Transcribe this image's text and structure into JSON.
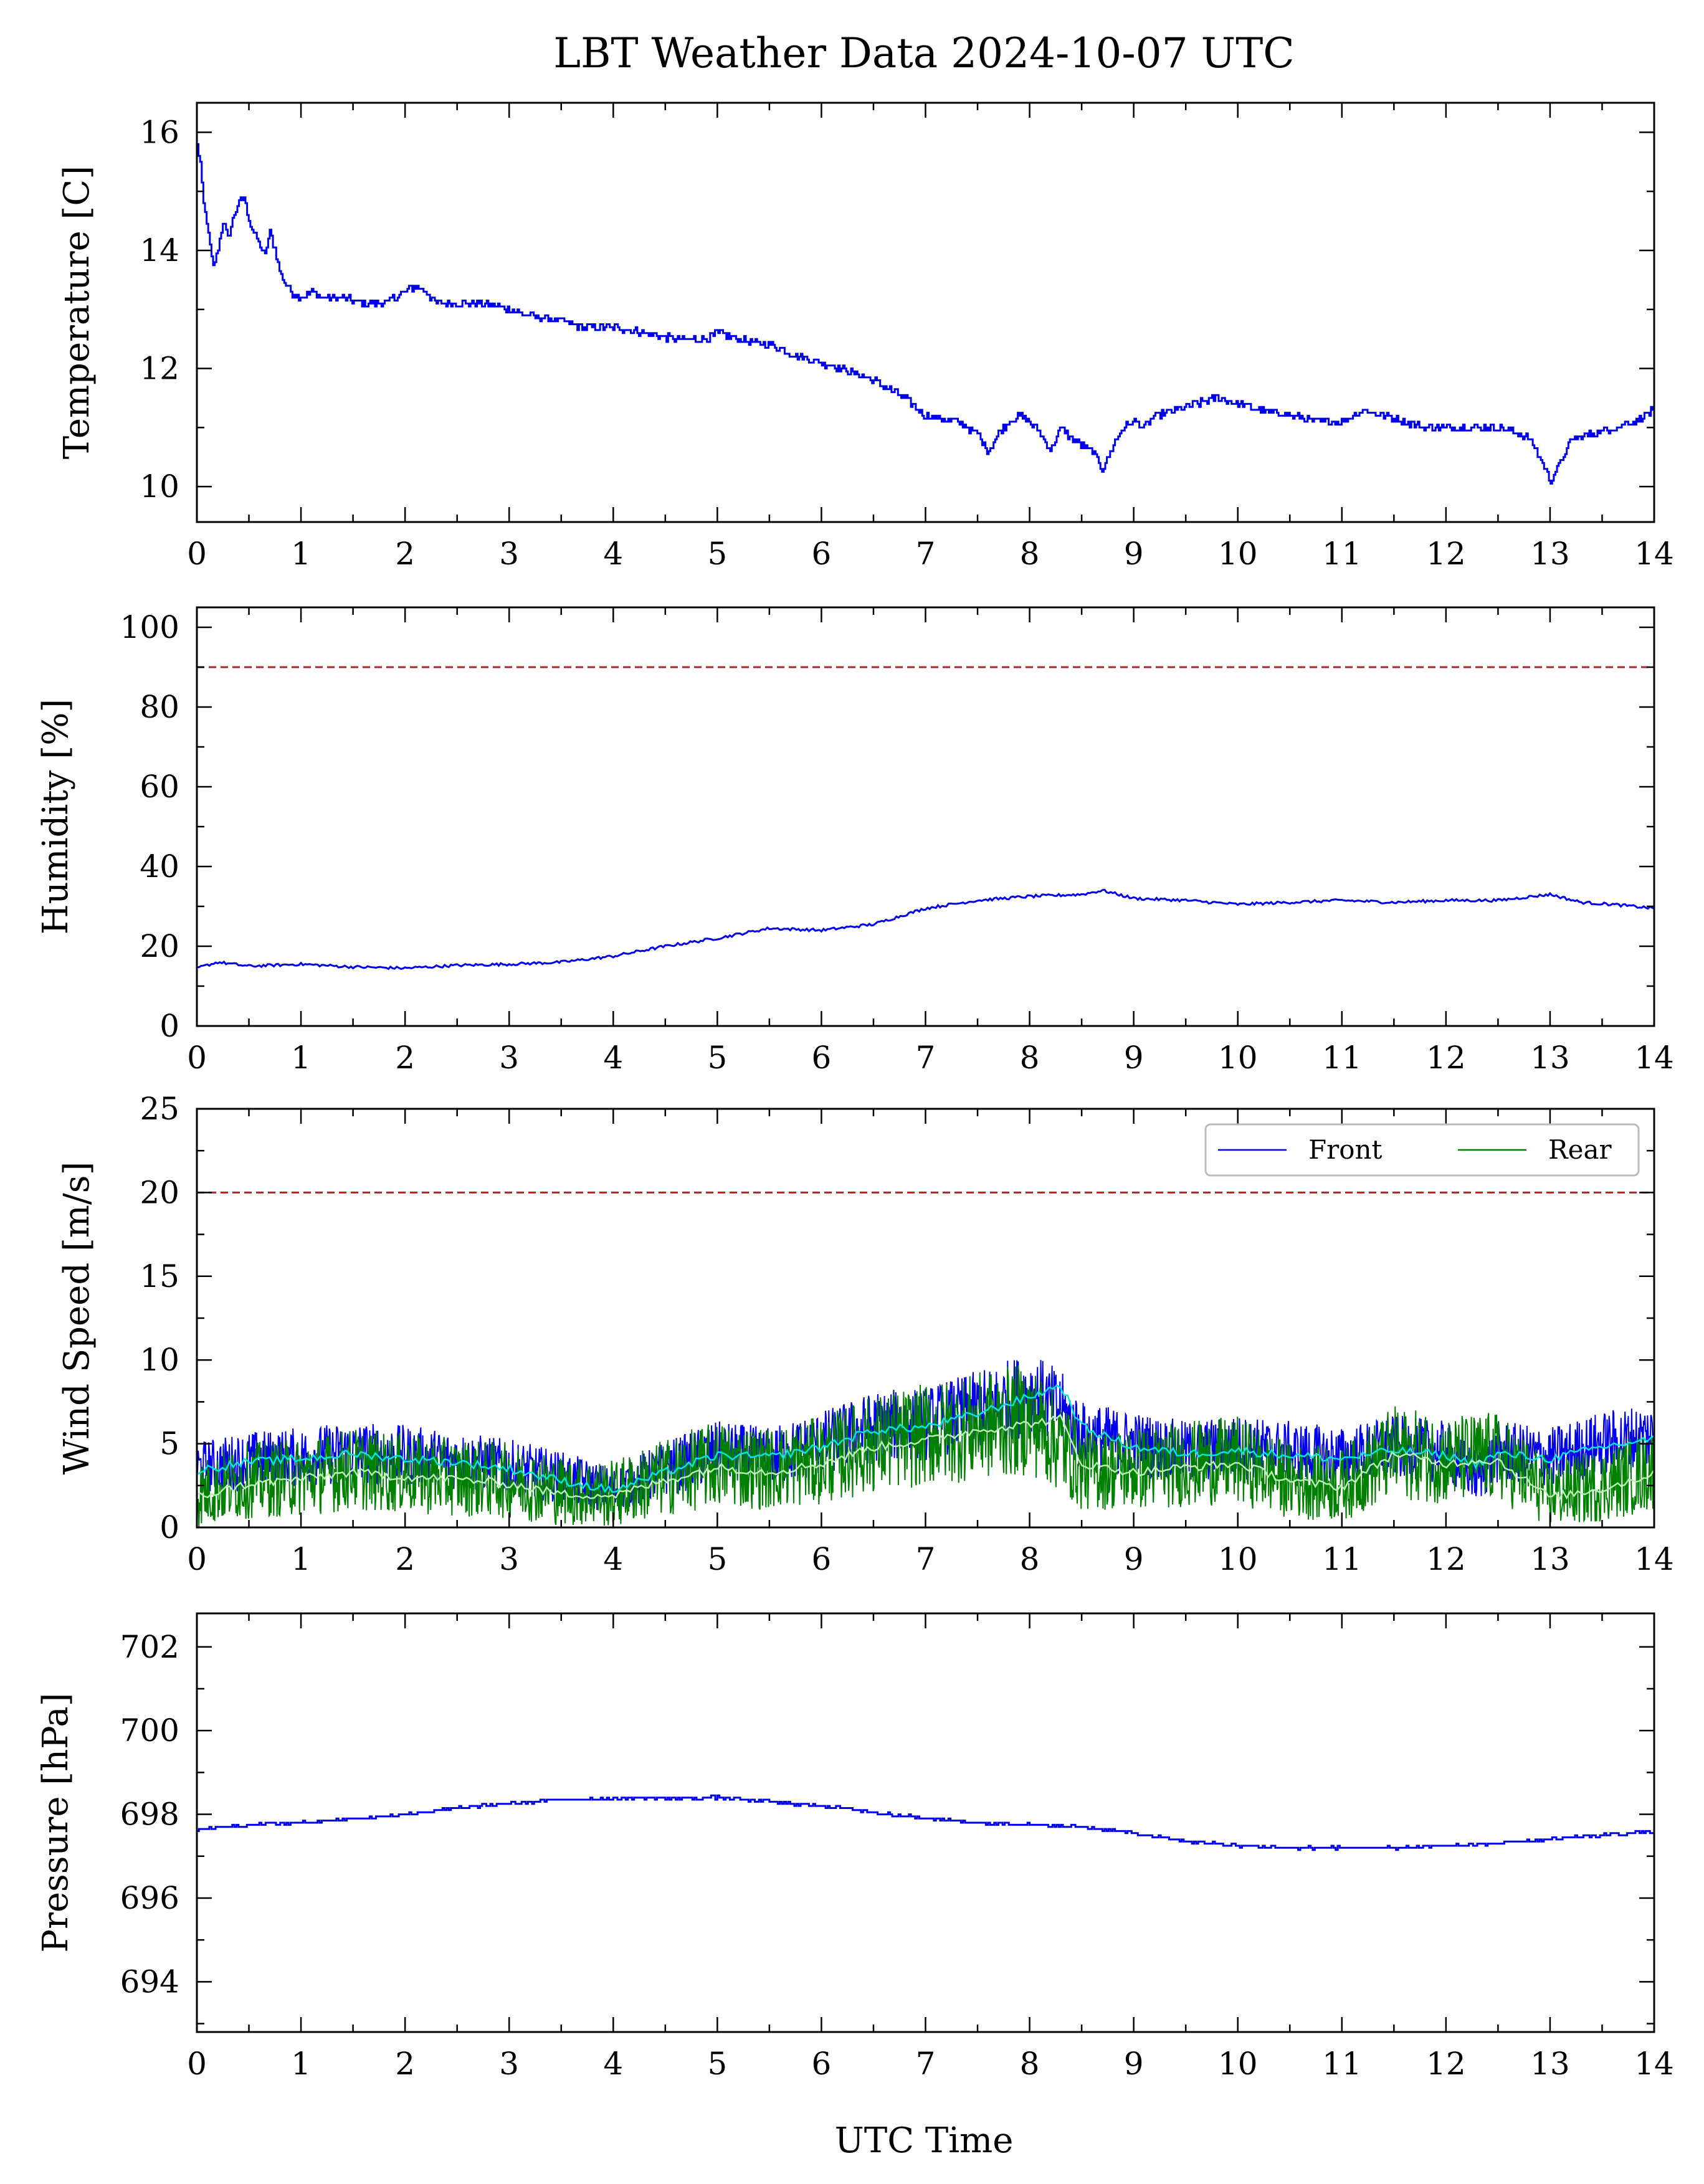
{
  "title": "LBT Weather Data 2024-10-07 UTC",
  "xlabel": "UTC Time",
  "chart_data": [
    {
      "type": "line",
      "ylabel": "Temperature [C]",
      "xlim": [
        0,
        14
      ],
      "ylim": [
        9.4,
        16.5
      ],
      "xticks": [
        "0",
        "1",
        "2",
        "3",
        "4",
        "5",
        "6",
        "7",
        "8",
        "9",
        "10",
        "11",
        "12",
        "13",
        "14"
      ],
      "yticks": [
        "10",
        "12",
        "14",
        "16"
      ],
      "ytick_values": [
        10,
        12,
        14,
        16
      ],
      "colors": {
        "series": "#0000ee"
      },
      "series": [
        {
          "x": [
            0,
            0.03,
            0.06,
            0.1,
            0.15,
            0.2,
            0.25,
            0.3,
            0.35,
            0.4,
            0.45,
            0.5,
            0.55,
            0.6,
            0.65,
            0.7,
            0.75,
            0.8,
            0.9,
            1.0,
            1.1,
            1.2,
            1.4,
            1.6,
            1.8,
            2.0,
            2.1,
            2.2,
            2.3,
            2.5,
            2.8,
            3.0,
            3.2,
            3.5,
            3.7,
            4.0,
            4.3,
            4.6,
            4.9,
            5.0,
            5.2,
            5.5,
            5.8,
            6.0,
            6.2,
            6.5,
            6.8,
            7.0,
            7.3,
            7.5,
            7.6,
            7.7,
            7.8,
            7.9,
            8.0,
            8.1,
            8.2,
            8.3,
            8.4,
            8.5,
            8.6,
            8.7,
            8.8,
            8.9,
            9.0,
            9.1,
            9.2,
            9.4,
            9.6,
            9.8,
            10.0,
            10.2,
            10.5,
            10.8,
            11.0,
            11.1,
            11.2,
            11.4,
            11.6,
            11.8,
            12.0,
            12.2,
            12.5,
            12.7,
            12.8,
            12.9,
            13.0,
            13.1,
            13.2,
            13.4,
            13.6,
            13.8,
            14.0
          ],
          "y": [
            15.8,
            15.5,
            14.8,
            14.4,
            13.7,
            14.0,
            14.5,
            14.2,
            14.6,
            14.8,
            14.9,
            14.5,
            14.3,
            14.1,
            13.9,
            14.3,
            14.0,
            13.6,
            13.3,
            13.2,
            13.3,
            13.2,
            13.2,
            13.1,
            13.1,
            13.3,
            13.4,
            13.3,
            13.1,
            13.1,
            13.1,
            13.0,
            12.9,
            12.8,
            12.7,
            12.7,
            12.6,
            12.5,
            12.5,
            12.6,
            12.5,
            12.4,
            12.2,
            12.1,
            12.0,
            11.8,
            11.5,
            11.2,
            11.1,
            10.9,
            10.6,
            10.9,
            11.1,
            11.2,
            11.1,
            10.9,
            10.6,
            11.0,
            10.8,
            10.7,
            10.6,
            10.3,
            10.7,
            11.0,
            11.1,
            11.0,
            11.2,
            11.3,
            11.4,
            11.5,
            11.4,
            11.3,
            11.2,
            11.1,
            11.1,
            11.2,
            11.3,
            11.2,
            11.1,
            11.0,
            11.0,
            11.0,
            11.0,
            10.9,
            10.8,
            10.5,
            10.1,
            10.4,
            10.8,
            10.9,
            11.0,
            11.1,
            11.3
          ]
        }
      ]
    },
    {
      "type": "line",
      "ylabel": "Humidity [%]",
      "xlim": [
        0,
        14
      ],
      "ylim": [
        0,
        105
      ],
      "xticks": [
        "0",
        "1",
        "2",
        "3",
        "4",
        "5",
        "6",
        "7",
        "8",
        "9",
        "10",
        "11",
        "12",
        "13",
        "14"
      ],
      "yticks": [
        "0",
        "20",
        "40",
        "60",
        "80",
        "100"
      ],
      "ytick_values": [
        0,
        20,
        40,
        60,
        80,
        100
      ],
      "threshold": 90,
      "colors": {
        "series": "#0000ee",
        "threshold": "#b22222"
      },
      "series": [
        {
          "x": [
            0,
            0.2,
            0.5,
            1.0,
            1.5,
            2.0,
            2.5,
            3.0,
            3.5,
            4.0,
            4.5,
            5.0,
            5.5,
            6.0,
            6.5,
            7.0,
            7.5,
            8.0,
            8.5,
            8.7,
            9.0,
            9.5,
            10.0,
            10.5,
            11.0,
            11.5,
            12.0,
            12.5,
            13.0,
            13.3,
            13.6,
            14.0
          ],
          "y": [
            14.5,
            16.0,
            15.0,
            15.5,
            14.8,
            14.5,
            15.2,
            15.5,
            16.0,
            17.5,
            20.0,
            22.0,
            24.5,
            24.0,
            25.5,
            29.5,
            31.5,
            32.5,
            33.0,
            34.0,
            32.0,
            31.5,
            30.5,
            31.0,
            31.5,
            31.0,
            31.5,
            31.5,
            33.0,
            31.0,
            30.5,
            29.5
          ]
        }
      ]
    },
    {
      "type": "line",
      "ylabel": "Wind Speed [m/s]",
      "xlim": [
        0,
        14
      ],
      "ylim": [
        0,
        25
      ],
      "xticks": [
        "0",
        "1",
        "2",
        "3",
        "4",
        "5",
        "6",
        "7",
        "8",
        "9",
        "10",
        "11",
        "12",
        "13",
        "14"
      ],
      "yticks": [
        "0",
        "5",
        "10",
        "15",
        "20",
        "25"
      ],
      "ytick_values": [
        0,
        5,
        10,
        15,
        20,
        25
      ],
      "threshold": 20,
      "legend": {
        "position": "top-right",
        "entries": [
          "Front",
          "Rear"
        ]
      },
      "colors": {
        "front": "#0000ee",
        "rear": "#008000",
        "front_mean": "#00e5e5",
        "rear_mean": "#b8f0b0",
        "threshold": "#b22222"
      },
      "series": [
        {
          "name": "Front",
          "x": [
            0,
            0.5,
            1.0,
            1.5,
            2.0,
            2.5,
            3.0,
            3.5,
            4.0,
            4.5,
            5.0,
            5.5,
            6.0,
            6.5,
            7.0,
            7.5,
            8.0,
            8.3,
            8.5,
            9.0,
            9.5,
            10.0,
            10.5,
            11.0,
            11.5,
            12.0,
            12.3,
            12.5,
            13.0,
            13.5,
            14.0
          ],
          "y": [
            3.5,
            4.0,
            4.2,
            4.5,
            4.3,
            4.0,
            3.6,
            3.0,
            2.2,
            3.5,
            4.5,
            4.2,
            5.0,
            6.0,
            6.2,
            7.0,
            8.0,
            7.0,
            5.5,
            5.0,
            4.5,
            4.8,
            4.5,
            4.2,
            4.8,
            4.5,
            3.0,
            4.5,
            4.2,
            5.0,
            5.5
          ],
          "mean": [
            3.4,
            3.9,
            4.1,
            4.4,
            4.1,
            3.9,
            3.5,
            2.8,
            2.2,
            3.3,
            4.3,
            4.2,
            4.8,
            5.8,
            6.0,
            6.8,
            7.8,
            8.5,
            6.0,
            4.8,
            4.4,
            4.6,
            4.3,
            4.1,
            4.6,
            4.3,
            3.8,
            4.4,
            4.1,
            4.8,
            5.3
          ]
        },
        {
          "name": "Rear",
          "x": [
            0,
            0.5,
            1.0,
            1.5,
            2.0,
            2.5,
            3.0,
            3.5,
            4.0,
            4.5,
            5.0,
            5.5,
            6.0,
            6.5,
            7.0,
            7.5,
            8.0,
            8.3,
            8.5,
            9.0,
            9.5,
            10.0,
            10.5,
            11.0,
            11.5,
            12.0,
            12.3,
            12.5,
            13.0,
            13.5,
            14.0
          ],
          "y": [
            2.0,
            2.8,
            3.0,
            3.5,
            3.2,
            3.0,
            2.8,
            2.2,
            2.0,
            3.0,
            3.8,
            3.5,
            4.0,
            5.0,
            5.5,
            6.0,
            6.5,
            5.0,
            3.5,
            3.5,
            3.8,
            4.0,
            2.8,
            2.5,
            4.5,
            4.0,
            4.2,
            4.2,
            2.0,
            2.5,
            3.5
          ],
          "mean": [
            1.8,
            2.6,
            2.9,
            3.3,
            3.0,
            2.9,
            2.6,
            2.0,
            1.9,
            2.8,
            3.6,
            3.3,
            3.8,
            4.8,
            5.2,
            5.8,
            6.2,
            6.5,
            3.8,
            3.3,
            3.6,
            3.8,
            2.8,
            2.4,
            4.4,
            3.8,
            4.0,
            4.0,
            1.8,
            2.3,
            3.2
          ]
        }
      ]
    },
    {
      "type": "line",
      "ylabel": "Pressure [hPa]",
      "xlim": [
        0,
        14
      ],
      "ylim": [
        692.8,
        702.8
      ],
      "xticks": [
        "0",
        "1",
        "2",
        "3",
        "4",
        "5",
        "6",
        "7",
        "8",
        "9",
        "10",
        "11",
        "12",
        "13",
        "14"
      ],
      "yticks": [
        "694",
        "696",
        "698",
        "700",
        "702"
      ],
      "ytick_values": [
        694,
        696,
        698,
        700,
        702
      ],
      "colors": {
        "series": "#0000ee"
      },
      "series": [
        {
          "x": [
            0,
            0.5,
            1.0,
            1.5,
            2.0,
            2.5,
            3.0,
            3.5,
            4.0,
            4.5,
            5.0,
            5.5,
            6.0,
            6.5,
            7.0,
            7.5,
            8.0,
            8.5,
            9.0,
            9.5,
            10.0,
            10.5,
            11.0,
            11.5,
            12.0,
            12.5,
            13.0,
            13.5,
            14.0
          ],
          "y": [
            697.65,
            697.75,
            697.8,
            697.9,
            698.0,
            698.15,
            698.25,
            698.35,
            698.38,
            698.38,
            698.4,
            698.3,
            698.2,
            698.05,
            697.9,
            697.8,
            697.75,
            697.7,
            697.55,
            697.35,
            697.25,
            697.2,
            697.2,
            697.2,
            697.25,
            697.3,
            697.4,
            697.5,
            697.6
          ]
        }
      ]
    }
  ]
}
